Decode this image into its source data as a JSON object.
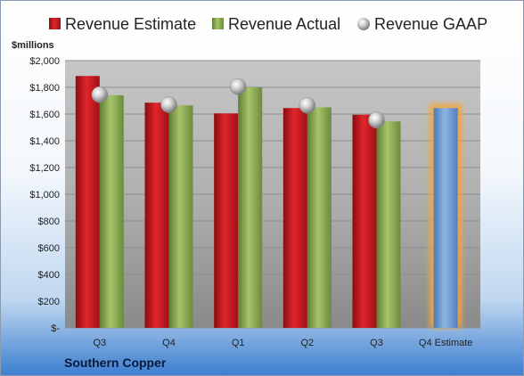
{
  "chart_data": {
    "type": "bar",
    "title": "",
    "ylabel": "$millions",
    "footer": "Southern Copper",
    "categories": [
      "Q3",
      "Q4",
      "Q1",
      "Q2",
      "Q3",
      "Q4 Estimate"
    ],
    "yticks": [
      "$-",
      "$200",
      "$400",
      "$600",
      "$800",
      "$1,000",
      "$1,200",
      "$1,400",
      "$1,600",
      "$1,800",
      "$2,000"
    ],
    "ylim": [
      0,
      2000
    ],
    "legend_position": "top",
    "series": [
      {
        "name": "Revenue Estimate",
        "kind": "bar",
        "color": "#c0181e",
        "values": [
          1885,
          1685,
          1605,
          1645,
          1595,
          null
        ]
      },
      {
        "name": "Revenue Actual",
        "kind": "bar",
        "color": "#8cae52",
        "values": [
          1740,
          1665,
          1800,
          1650,
          1545,
          null
        ]
      },
      {
        "name": "Revenue GAAP",
        "kind": "marker",
        "color": "#c8c8c8",
        "values": [
          1745,
          1670,
          1805,
          1665,
          1555,
          null
        ]
      },
      {
        "name": "",
        "kind": "bar",
        "color": "#6d9ed6",
        "values": [
          null,
          null,
          null,
          null,
          null,
          1645
        ],
        "glow": "#f4a640"
      }
    ]
  }
}
